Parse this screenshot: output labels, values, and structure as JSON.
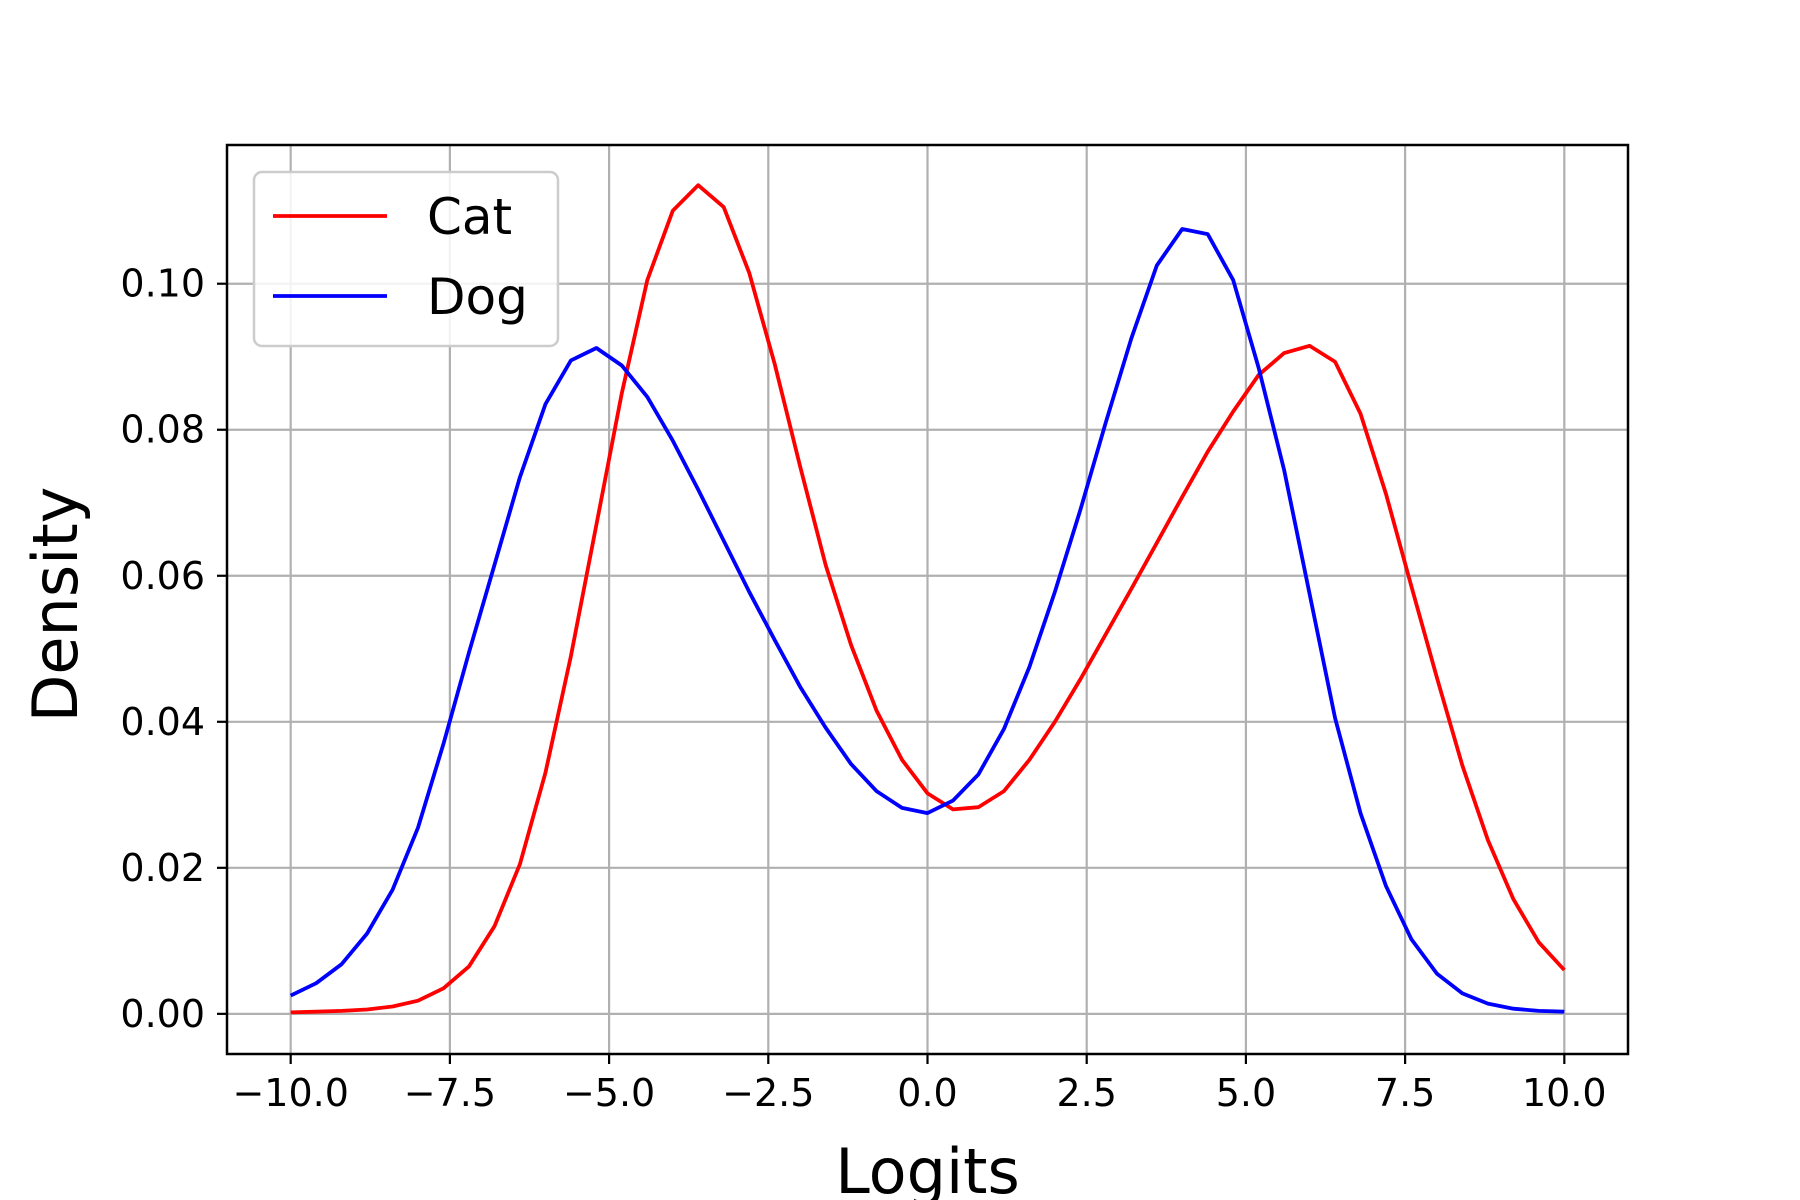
{
  "chart_data": {
    "type": "line",
    "xlabel": "Logits",
    "ylabel": "Density",
    "xlim": [
      -11,
      11
    ],
    "ylim": [
      -0.0055,
      0.119
    ],
    "xticks": [
      -10.0,
      -7.5,
      -5.0,
      -2.5,
      0.0,
      2.5,
      5.0,
      7.5,
      10.0
    ],
    "xtick_labels": [
      "−10.0",
      "−7.5",
      "−5.0",
      "−2.5",
      "0.0",
      "2.5",
      "5.0",
      "7.5",
      "10.0"
    ],
    "yticks": [
      0.0,
      0.02,
      0.04,
      0.06,
      0.08,
      0.1
    ],
    "ytick_labels": [
      "0.00",
      "0.02",
      "0.04",
      "0.06",
      "0.08",
      "0.10"
    ],
    "grid": true,
    "legend_position": "top-left",
    "x": [
      -10.0,
      -9.6,
      -9.2,
      -8.8,
      -8.4,
      -8.0,
      -7.6,
      -7.2,
      -6.8,
      -6.4,
      -6.0,
      -5.6,
      -5.2,
      -4.8,
      -4.4,
      -4.0,
      -3.6,
      -3.2,
      -2.8,
      -2.4,
      -2.0,
      -1.6,
      -1.2,
      -0.8,
      -0.4,
      0.0,
      0.4,
      0.8,
      1.2,
      1.6,
      2.0,
      2.4,
      2.8,
      3.2,
      3.6,
      4.0,
      4.4,
      4.8,
      5.2,
      5.6,
      6.0,
      6.4,
      6.8,
      7.2,
      7.6,
      8.0,
      8.4,
      8.8,
      9.2,
      9.6,
      10.0
    ],
    "series": [
      {
        "name": "Cat",
        "color": "#ff0000",
        "values": [
          0.0002,
          0.0003,
          0.0004,
          0.0006,
          0.001,
          0.0018,
          0.0035,
          0.0065,
          0.012,
          0.0205,
          0.033,
          0.049,
          0.067,
          0.085,
          0.1005,
          0.11,
          0.1135,
          0.1105,
          0.1015,
          0.089,
          0.075,
          0.0615,
          0.0505,
          0.0415,
          0.0348,
          0.0302,
          0.028,
          0.0283,
          0.0305,
          0.0348,
          0.04,
          0.0458,
          0.052,
          0.0582,
          0.0645,
          0.0708,
          0.077,
          0.0825,
          0.0875,
          0.0905,
          0.0915,
          0.0893,
          0.0822,
          0.0712,
          0.0585,
          0.046,
          0.034,
          0.0238,
          0.0157,
          0.0098,
          0.006
        ]
      },
      {
        "name": "Dog",
        "color": "#0000ff",
        "values": [
          0.0025,
          0.0042,
          0.0068,
          0.011,
          0.017,
          0.0255,
          0.037,
          0.0495,
          0.0615,
          0.0735,
          0.0835,
          0.0895,
          0.0912,
          0.0888,
          0.0845,
          0.0785,
          0.0718,
          0.0648,
          0.0578,
          0.0512,
          0.0448,
          0.0392,
          0.0342,
          0.0305,
          0.0282,
          0.0275,
          0.0292,
          0.0328,
          0.039,
          0.0475,
          0.0578,
          0.069,
          0.081,
          0.0925,
          0.1025,
          0.1075,
          0.1068,
          0.1005,
          0.0885,
          0.0745,
          0.0575,
          0.0405,
          0.0275,
          0.0175,
          0.0102,
          0.0055,
          0.0028,
          0.0014,
          0.0007,
          0.0004,
          0.0003
        ]
      }
    ]
  }
}
